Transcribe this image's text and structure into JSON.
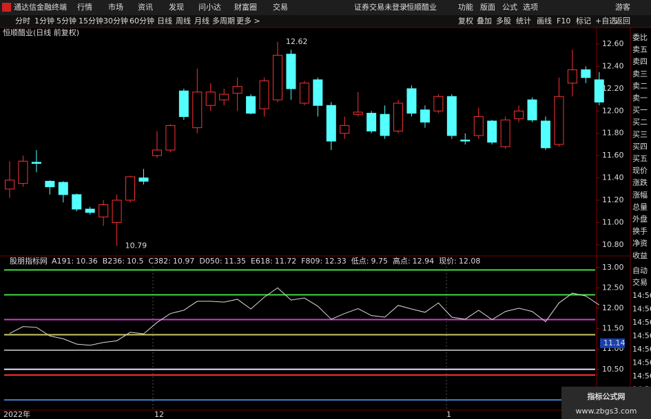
{
  "menu": {
    "app": "通达信金融终端",
    "items": [
      "行情",
      "市场",
      "资讯",
      "发现",
      "问小达",
      "财富圈",
      "交易"
    ],
    "status": "证券交易未登录",
    "stock": "恒顺醋业",
    "right": [
      "功能",
      "版面",
      "公式",
      "选项"
    ],
    "user": "游客"
  },
  "toolbar": {
    "periods": [
      "分时",
      "1分钟",
      "5分钟",
      "15分钟",
      "30分钟",
      "60分钟",
      "日线",
      "周线",
      "月线",
      "多周期",
      "更多 >"
    ],
    "active": 6,
    "tools": [
      "复权",
      "叠加",
      "多股",
      "统计",
      "画线",
      "F10",
      "标记",
      "+自选",
      "返回"
    ]
  },
  "main_chart": {
    "title": "恒顺醋业(日线 前复权)",
    "up_color": "#ff3232",
    "down_color": "#54ffff",
    "ylim": [
      10.7,
      12.65
    ],
    "yticks": [
      {
        "value": 12.6,
        "label": "12.60"
      },
      {
        "value": 12.4,
        "label": "12.40"
      },
      {
        "value": 12.2,
        "label": "12.20"
      },
      {
        "value": 12,
        "label": "12.00"
      },
      {
        "value": 11.8,
        "label": "11.80"
      },
      {
        "value": 11.6,
        "label": "11.60"
      },
      {
        "value": 11.4,
        "label": "11.40"
      },
      {
        "value": 11.2,
        "label": "11.20"
      },
      {
        "value": 11,
        "label": "11.00"
      },
      {
        "value": 10.8,
        "label": "10.80"
      }
    ],
    "candles": [
      {
        "open": 11.3,
        "high": 11.55,
        "low": 11.22,
        "close": 11.38
      },
      {
        "open": 11.35,
        "high": 11.6,
        "low": 11.32,
        "close": 11.55
      },
      {
        "open": 11.54,
        "high": 11.65,
        "low": 11.45,
        "close": 11.53
      },
      {
        "open": 11.37,
        "high": 11.38,
        "low": 11.25,
        "close": 11.32
      },
      {
        "open": 11.36,
        "high": 11.37,
        "low": 11.18,
        "close": 11.25
      },
      {
        "open": 11.25,
        "high": 11.26,
        "low": 11.1,
        "close": 11.12
      },
      {
        "open": 11.12,
        "high": 11.14,
        "low": 11.07,
        "close": 11.09
      },
      {
        "open": 11.05,
        "high": 11.2,
        "low": 10.97,
        "close": 11.16
      },
      {
        "open": 11,
        "high": 11.25,
        "low": 10.79,
        "close": 11.2
      },
      {
        "open": 11.2,
        "high": 11.42,
        "low": 11.18,
        "close": 11.41
      },
      {
        "open": 11.4,
        "high": 11.48,
        "low": 11.34,
        "close": 11.37
      },
      {
        "open": 11.6,
        "high": 11.82,
        "low": 11.58,
        "close": 11.65
      },
      {
        "open": 11.65,
        "high": 11.88,
        "low": 11.63,
        "close": 11.87
      },
      {
        "open": 12.18,
        "high": 12.2,
        "low": 11.92,
        "close": 11.95
      },
      {
        "open": 11.85,
        "high": 12.38,
        "low": 11.8,
        "close": 12.17
      },
      {
        "open": 12.05,
        "high": 12.25,
        "low": 12,
        "close": 12.17
      },
      {
        "open": 12.1,
        "high": 12.2,
        "low": 12.05,
        "close": 12.15
      },
      {
        "open": 12.16,
        "high": 12.3,
        "low": 12,
        "close": 12.22
      },
      {
        "open": 12.13,
        "high": 12.15,
        "low": 11.97,
        "close": 11.98
      },
      {
        "open": 12.02,
        "high": 12.3,
        "low": 11.95,
        "close": 12.27
      },
      {
        "open": 12.1,
        "high": 12.62,
        "low": 12.08,
        "close": 12.5
      },
      {
        "open": 12.51,
        "high": 12.55,
        "low": 12.1,
        "close": 12.2
      },
      {
        "open": 12.07,
        "high": 12.27,
        "low": 12.05,
        "close": 12.25
      },
      {
        "open": 12.28,
        "high": 12.3,
        "low": 11.95,
        "close": 12.05
      },
      {
        "open": 12.05,
        "high": 12.08,
        "low": 11.65,
        "close": 11.73
      },
      {
        "open": 11.8,
        "high": 11.95,
        "low": 11.75,
        "close": 11.87
      },
      {
        "open": 11.97,
        "high": 12.17,
        "low": 11.95,
        "close": 11.99
      },
      {
        "open": 11.98,
        "high": 12,
        "low": 11.8,
        "close": 11.82
      },
      {
        "open": 11.97,
        "high": 12.05,
        "low": 11.75,
        "close": 11.78
      },
      {
        "open": 11.82,
        "high": 12.1,
        "low": 11.8,
        "close": 12.07
      },
      {
        "open": 12.2,
        "high": 12.23,
        "low": 11.95,
        "close": 11.98
      },
      {
        "open": 12.01,
        "high": 12.05,
        "low": 11.85,
        "close": 11.9
      },
      {
        "open": 12,
        "high": 12.15,
        "low": 11.98,
        "close": 12.13
      },
      {
        "open": 12.13,
        "high": 12.15,
        "low": 11.75,
        "close": 11.78
      },
      {
        "open": 11.74,
        "high": 11.8,
        "low": 11.7,
        "close": 11.73
      },
      {
        "open": 11.78,
        "high": 12.03,
        "low": 11.75,
        "close": 11.95
      },
      {
        "open": 11.91,
        "high": 11.92,
        "low": 11.7,
        "close": 11.72
      },
      {
        "open": 11.68,
        "high": 11.95,
        "low": 11.66,
        "close": 11.92
      },
      {
        "open": 11.93,
        "high": 12.05,
        "low": 11.9,
        "close": 12
      },
      {
        "open": 12.1,
        "high": 12.12,
        "low": 11.9,
        "close": 11.92
      },
      {
        "open": 11.91,
        "high": 11.95,
        "low": 11.65,
        "close": 11.67
      },
      {
        "open": 11.7,
        "high": 12.3,
        "low": 11.68,
        "close": 12.13
      },
      {
        "open": 12.25,
        "high": 12.55,
        "low": 12.13,
        "close": 12.37
      },
      {
        "open": 12.37,
        "high": 12.4,
        "low": 12.25,
        "close": 12.3
      },
      {
        "open": 12.28,
        "high": 12.35,
        "low": 12.05,
        "close": 12.08
      }
    ]
  },
  "indicator_chart": {
    "title": "股朋指标网",
    "ylim": [
      9.5,
      13.03
    ],
    "yticks": [
      {
        "value": 13,
        "label": "13.00"
      },
      {
        "value": 12.5,
        "label": "12.50"
      },
      {
        "value": 12,
        "label": "12.00"
      },
      {
        "value": 11.5,
        "label": "11.50"
      },
      {
        "value": 11,
        "label": "11.00"
      },
      {
        "value": 10.5,
        "label": "10.50"
      }
    ],
    "lines": [
      {
        "name": "A191:",
        "value": 10.36,
        "color": "#ff3030"
      },
      {
        "name": "B236:",
        "value": 10.5,
        "color": "#e0e0ff"
      },
      {
        "name": "C382:",
        "value": 10.97,
        "color": "#a0a0a0"
      },
      {
        "name": "D050:",
        "value": 11.35,
        "color": "#cccc66"
      },
      {
        "name": "E618:",
        "value": 11.72,
        "color": "#d040d0"
      },
      {
        "name": "F809:",
        "value": 12.33,
        "color": "#40dd40"
      },
      {
        "name": "低点:",
        "value": 9.75,
        "color": "#4a80d0"
      },
      {
        "name": "高点:",
        "value": 12.94,
        "color": "#40dd40"
      }
    ],
    "current": {
      "name": "现价:",
      "value": 12.08
    },
    "marker": 11.14
  },
  "x_labels": [
    "2022年",
    "12",
    "1"
  ],
  "side_panel": {
    "quote": [
      "委比",
      "卖五",
      "卖四",
      "卖三",
      "卖二",
      "卖一",
      "买一",
      "买二",
      "买三",
      "买四",
      "买五",
      "现价",
      "涨跌",
      "涨幅",
      "总量",
      "外盘",
      "换手",
      "净资",
      "收益"
    ],
    "buttons": [
      "自动",
      "交易"
    ],
    "times": [
      "14:56",
      "14:56",
      "14:56",
      "14:56",
      "14:56",
      "14:56",
      "14:56",
      "14:56",
      "14:56"
    ]
  },
  "watermark": {
    "title": "指标公式网",
    "url": "www.zbgs3.com"
  }
}
